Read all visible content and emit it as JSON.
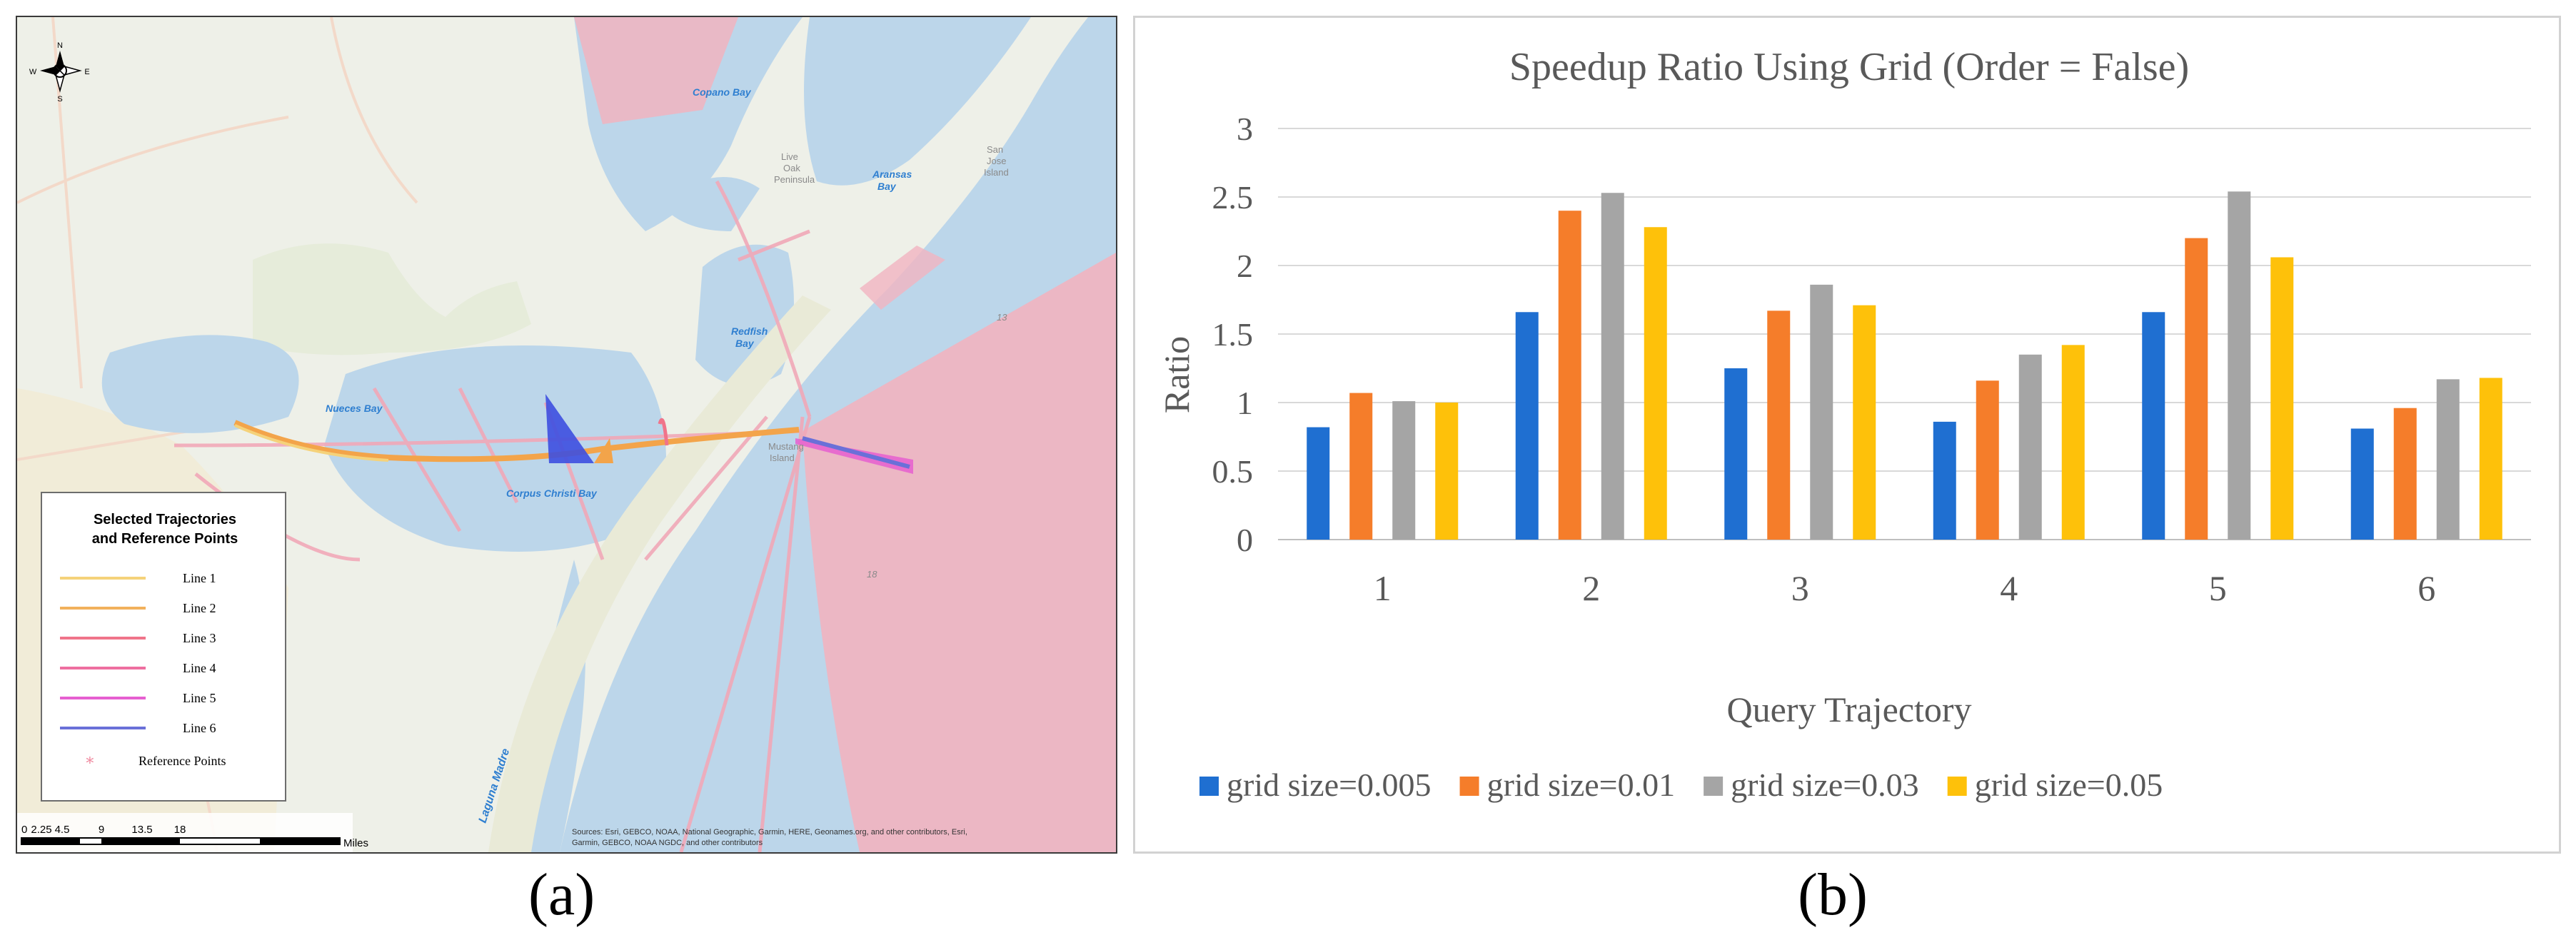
{
  "captions": {
    "map": "(a)",
    "chart": "(b)"
  },
  "map": {
    "compass": {
      "n": "N",
      "s": "S",
      "e": "E",
      "w": "W"
    },
    "places": {
      "copano_bay": "Copano Bay",
      "live_oak_1": "Live",
      "live_oak_2": "Oak",
      "live_oak_3": "Peninsula",
      "aransas_bay_1": "Aransas",
      "aransas_bay_2": "Bay",
      "san_jose_1": "San",
      "san_jose_2": "Jose",
      "san_jose_3": "Island",
      "redfish_bay_1": "Redfish",
      "redfish_bay_2": "Bay",
      "nueces_bay": "Nueces Bay",
      "corpus_christi_bay": "Corpus Christi Bay",
      "mustang_island_1": "Mustang",
      "mustang_island_2": "Island",
      "laguna_madre": "Laguna Madre",
      "depth_13": "13",
      "depth_18": "18"
    },
    "legend": {
      "title_1": "Selected Trajectories",
      "title_2": "and Reference Points",
      "items": [
        {
          "label": "Line 1",
          "color": "#f5d27a"
        },
        {
          "label": "Line 2",
          "color": "#f2b15c"
        },
        {
          "label": "Line 3",
          "color": "#f0748a"
        },
        {
          "label": "Line 4",
          "color": "#ee6fa0"
        },
        {
          "label": "Line 5",
          "color": "#e65fd0"
        },
        {
          "label": "Line 6",
          "color": "#6a70d8"
        }
      ],
      "ref_label": "Reference Points",
      "ref_color": "#f08aa0"
    },
    "scalebar": {
      "ticks": [
        "0",
        "2.25",
        "4.5",
        "9",
        "13.5",
        "18"
      ],
      "unit": "Miles"
    },
    "attribution_1": "Sources: Esri, GEBCO, NOAA, National Geographic, Garmin, HERE, Geonames.org, and other contributors, Esri,",
    "attribution_2": "Garmin, GEBCO, NOAA NGDC, and other contributors"
  },
  "chart_data": {
    "type": "bar",
    "title": "Speedup Ratio Using Grid (Order = False)",
    "xlabel": "Query Trajectory",
    "ylabel": "Ratio",
    "ylim": [
      0,
      3
    ],
    "yticks": [
      "0",
      "0.5",
      "1",
      "1.5",
      "2",
      "2.5",
      "3"
    ],
    "categories": [
      "1",
      "2",
      "3",
      "4",
      "5",
      "6"
    ],
    "grid": true,
    "legend_position": "bottom",
    "series": [
      {
        "name": "grid size=0.005",
        "color": "#1f6fd1",
        "values": [
          0.82,
          1.66,
          1.25,
          0.86,
          1.66,
          0.81
        ]
      },
      {
        "name": "grid size=0.01",
        "color": "#f57d2a",
        "values": [
          1.07,
          2.4,
          1.67,
          1.16,
          2.2,
          0.96
        ]
      },
      {
        "name": "grid size=0.03",
        "color": "#a5a5a5",
        "values": [
          1.01,
          2.53,
          1.86,
          1.35,
          2.54,
          1.17
        ]
      },
      {
        "name": "grid size=0.05",
        "color": "#fec10a",
        "values": [
          1.0,
          2.28,
          1.71,
          1.42,
          2.06,
          1.18
        ]
      }
    ]
  }
}
